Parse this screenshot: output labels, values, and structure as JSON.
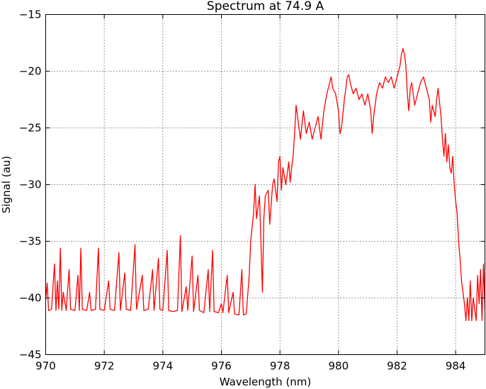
{
  "chart_data": {
    "type": "line",
    "title": "Spectrum at 74.9 A",
    "xlabel": "Wavelength (nm)",
    "ylabel": "Signal (au)",
    "xlim": [
      970,
      985
    ],
    "ylim": [
      -45,
      -15
    ],
    "xticks": [
      970,
      972,
      974,
      976,
      978,
      980,
      982,
      984
    ],
    "xtick_labels": [
      "970",
      "972",
      "974",
      "976",
      "978",
      "980",
      "982",
      "984"
    ],
    "yticks": [
      -45,
      -40,
      -35,
      -30,
      -25,
      -20,
      -15
    ],
    "ytick_labels": [
      "−45",
      "−40",
      "−35",
      "−30",
      "−25",
      "−20",
      "−15"
    ],
    "grid": true,
    "grid_style": "dotted",
    "legend": false,
    "series": [
      {
        "color": "#ff0000",
        "points": [
          [
            970.0,
            -40.2
          ],
          [
            970.05,
            -38.7
          ],
          [
            970.1,
            -41.1
          ],
          [
            970.2,
            -41.0
          ],
          [
            970.3,
            -37.0
          ],
          [
            970.35,
            -41.1
          ],
          [
            970.4,
            -38.5
          ],
          [
            970.45,
            -41.0
          ],
          [
            970.5,
            -35.6
          ],
          [
            970.55,
            -41.1
          ],
          [
            970.6,
            -39.5
          ],
          [
            970.7,
            -41.1
          ],
          [
            970.8,
            -37.5
          ],
          [
            970.85,
            -41.0
          ],
          [
            971.0,
            -41.1
          ],
          [
            971.1,
            -38.0
          ],
          [
            971.15,
            -41.1
          ],
          [
            971.2,
            -35.6
          ],
          [
            971.25,
            -41.0
          ],
          [
            971.4,
            -41.1
          ],
          [
            971.5,
            -39.5
          ],
          [
            971.55,
            -41.1
          ],
          [
            971.7,
            -41.0
          ],
          [
            971.8,
            -35.6
          ],
          [
            971.85,
            -41.0
          ],
          [
            972.0,
            -41.1
          ],
          [
            972.15,
            -38.5
          ],
          [
            972.2,
            -41.0
          ],
          [
            972.35,
            -41.1
          ],
          [
            972.5,
            -36.0
          ],
          [
            972.55,
            -41.1
          ],
          [
            972.7,
            -37.8
          ],
          [
            972.75,
            -41.0
          ],
          [
            972.9,
            -41.1
          ],
          [
            973.05,
            -35.3
          ],
          [
            973.1,
            -41.0
          ],
          [
            973.3,
            -38.0
          ],
          [
            973.35,
            -41.1
          ],
          [
            973.5,
            -41.0
          ],
          [
            973.65,
            -37.5
          ],
          [
            973.7,
            -41.1
          ],
          [
            973.85,
            -36.5
          ],
          [
            973.9,
            -41.0
          ],
          [
            974.0,
            -41.1
          ],
          [
            974.15,
            -35.8
          ],
          [
            974.2,
            -41.1
          ],
          [
            974.35,
            -41.2
          ],
          [
            974.5,
            -41.1
          ],
          [
            974.6,
            -34.5
          ],
          [
            974.65,
            -41.2
          ],
          [
            974.8,
            -39.0
          ],
          [
            974.85,
            -41.1
          ],
          [
            975.0,
            -36.3
          ],
          [
            975.05,
            -41.2
          ],
          [
            975.2,
            -38.0
          ],
          [
            975.25,
            -41.1
          ],
          [
            975.4,
            -41.3
          ],
          [
            975.55,
            -37.5
          ],
          [
            975.6,
            -41.2
          ],
          [
            975.7,
            -35.8
          ],
          [
            975.75,
            -41.2
          ],
          [
            975.9,
            -41.3
          ],
          [
            976.0,
            -40.5
          ],
          [
            976.05,
            -41.3
          ],
          [
            976.2,
            -38.0
          ],
          [
            976.25,
            -41.3
          ],
          [
            976.4,
            -39.5
          ],
          [
            976.45,
            -41.4
          ],
          [
            976.6,
            -41.5
          ],
          [
            976.7,
            -37.5
          ],
          [
            976.75,
            -41.5
          ],
          [
            976.85,
            -41.4
          ],
          [
            976.95,
            -38.0
          ],
          [
            977.0,
            -35.0
          ],
          [
            977.1,
            -32.5
          ],
          [
            977.15,
            -30.0
          ],
          [
            977.2,
            -33.0
          ],
          [
            977.3,
            -31.0
          ],
          [
            977.35,
            -35.0
          ],
          [
            977.4,
            -39.5
          ],
          [
            977.45,
            -33.0
          ],
          [
            977.5,
            -31.0
          ],
          [
            977.6,
            -30.5
          ],
          [
            977.65,
            -33.5
          ],
          [
            977.75,
            -30.0
          ],
          [
            977.8,
            -29.5
          ],
          [
            977.9,
            -31.5
          ],
          [
            977.95,
            -28.0
          ],
          [
            978.0,
            -27.5
          ],
          [
            978.05,
            -30.5
          ],
          [
            978.1,
            -28.5
          ],
          [
            978.2,
            -30.0
          ],
          [
            978.3,
            -28.0
          ],
          [
            978.35,
            -29.8
          ],
          [
            978.4,
            -28.5
          ],
          [
            978.45,
            -27.5
          ],
          [
            978.5,
            -25.5
          ],
          [
            978.55,
            -23.0
          ],
          [
            978.6,
            -24.0
          ],
          [
            978.7,
            -26.0
          ],
          [
            978.8,
            -23.5
          ],
          [
            978.9,
            -25.5
          ],
          [
            979.0,
            -24.5
          ],
          [
            979.1,
            -26.0
          ],
          [
            979.2,
            -25.0
          ],
          [
            979.3,
            -24.0
          ],
          [
            979.4,
            -26.0
          ],
          [
            979.5,
            -23.5
          ],
          [
            979.6,
            -22.0
          ],
          [
            979.7,
            -21.0
          ],
          [
            979.75,
            -20.5
          ],
          [
            979.8,
            -21.5
          ],
          [
            979.9,
            -22.0
          ],
          [
            980.0,
            -23.5
          ],
          [
            980.05,
            -25.5
          ],
          [
            980.1,
            -25.0
          ],
          [
            980.2,
            -22.5
          ],
          [
            980.3,
            -20.5
          ],
          [
            980.35,
            -20.3
          ],
          [
            980.4,
            -21.0
          ],
          [
            980.5,
            -22.0
          ],
          [
            980.6,
            -21.5
          ],
          [
            980.7,
            -22.5
          ],
          [
            980.8,
            -22.0
          ],
          [
            980.9,
            -23.0
          ],
          [
            981.0,
            -22.0
          ],
          [
            981.1,
            -23.5
          ],
          [
            981.15,
            -25.5
          ],
          [
            981.2,
            -24.0
          ],
          [
            981.3,
            -22.0
          ],
          [
            981.4,
            -21.0
          ],
          [
            981.5,
            -21.5
          ],
          [
            981.6,
            -20.5
          ],
          [
            981.7,
            -21.0
          ],
          [
            981.8,
            -20.5
          ],
          [
            981.9,
            -21.5
          ],
          [
            982.0,
            -20.5
          ],
          [
            982.1,
            -19.5
          ],
          [
            982.15,
            -18.5
          ],
          [
            982.2,
            -18.0
          ],
          [
            982.25,
            -18.5
          ],
          [
            982.3,
            -19.5
          ],
          [
            982.35,
            -22.0
          ],
          [
            982.4,
            -23.5
          ],
          [
            982.45,
            -21.5
          ],
          [
            982.5,
            -21.0
          ],
          [
            982.6,
            -23.0
          ],
          [
            982.7,
            -22.0
          ],
          [
            982.8,
            -21.0
          ],
          [
            982.9,
            -20.5
          ],
          [
            983.0,
            -21.5
          ],
          [
            983.1,
            -22.5
          ],
          [
            983.15,
            -24.5
          ],
          [
            983.2,
            -23.0
          ],
          [
            983.3,
            -24.0
          ],
          [
            983.35,
            -22.5
          ],
          [
            983.4,
            -21.5
          ],
          [
            983.5,
            -24.0
          ],
          [
            983.55,
            -26.0
          ],
          [
            983.6,
            -27.5
          ],
          [
            983.65,
            -25.5
          ],
          [
            983.7,
            -28.0
          ],
          [
            983.75,
            -26.5
          ],
          [
            983.8,
            -28.5
          ],
          [
            983.85,
            -29.0
          ],
          [
            983.9,
            -27.5
          ],
          [
            983.95,
            -30.0
          ],
          [
            984.0,
            -31.5
          ],
          [
            984.05,
            -32.5
          ],
          [
            984.1,
            -35.0
          ],
          [
            984.15,
            -36.5
          ],
          [
            984.2,
            -38.5
          ],
          [
            984.25,
            -39.5
          ],
          [
            984.3,
            -40.5
          ],
          [
            984.35,
            -42.0
          ],
          [
            984.4,
            -40.0
          ],
          [
            984.45,
            -42.0
          ],
          [
            984.5,
            -38.5
          ],
          [
            984.55,
            -42.0
          ],
          [
            984.6,
            -40.0
          ],
          [
            984.7,
            -42.0
          ],
          [
            984.75,
            -38.0
          ],
          [
            984.8,
            -40.5
          ],
          [
            984.85,
            -37.5
          ],
          [
            984.9,
            -42.0
          ],
          [
            984.95,
            -37.0
          ],
          [
            985.0,
            -41.0
          ]
        ]
      }
    ]
  }
}
